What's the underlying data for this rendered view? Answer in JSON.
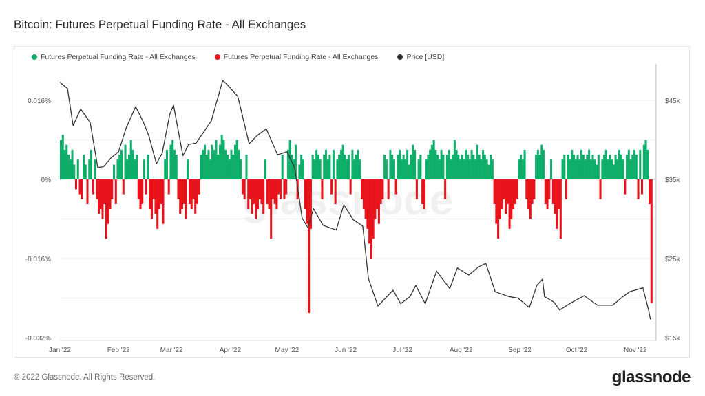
{
  "title": "Bitcoin: Futures Perpetual Funding Rate - All Exchanges",
  "footer": "© 2022 Glassnode. All Rights Reserved.",
  "logo": "glassnode",
  "watermark": "glassnode",
  "chart_data": {
    "type": "bar",
    "title": "Bitcoin: Futures Perpetual Funding Rate - All Exchanges",
    "grid": true,
    "legend_position": "top-left",
    "x_range": [
      "2022-01-01",
      "2022-11-12"
    ],
    "x_ticks": [
      {
        "date": "2022-01-01",
        "label": "Jan '22"
      },
      {
        "date": "2022-02-01",
        "label": "Feb '22"
      },
      {
        "date": "2022-03-01",
        "label": "Mar '22"
      },
      {
        "date": "2022-04-01",
        "label": "Apr '22"
      },
      {
        "date": "2022-05-01",
        "label": "May '22"
      },
      {
        "date": "2022-06-01",
        "label": "Jun '22"
      },
      {
        "date": "2022-07-01",
        "label": "Jul '22"
      },
      {
        "date": "2022-08-01",
        "label": "Aug '22"
      },
      {
        "date": "2022-09-01",
        "label": "Sep '22"
      },
      {
        "date": "2022-10-01",
        "label": "Oct '22"
      },
      {
        "date": "2022-11-01",
        "label": "Nov '22"
      }
    ],
    "left_axis": {
      "unit": "%",
      "ylim": [
        -0.032,
        0.016
      ],
      "ticks": [
        {
          "v": 0.016,
          "label": "0.016%"
        },
        {
          "v": 0,
          "label": "0%"
        },
        {
          "v": -0.016,
          "label": "-0.016%"
        },
        {
          "v": -0.032,
          "label": "-0.032%"
        }
      ]
    },
    "right_axis": {
      "unit": "USD",
      "ylim": [
        15000,
        45000
      ],
      "scale": "linear",
      "ticks": [
        {
          "v": 45000,
          "label": "$45k"
        },
        {
          "v": 35000,
          "label": "$35k"
        },
        {
          "v": 25000,
          "label": "$25k"
        },
        {
          "v": 15000,
          "label": "$15k"
        }
      ]
    },
    "series": [
      {
        "name": "Futures Perpetual Funding Rate - All Exchanges",
        "color": "#0fae6a",
        "part": "positive",
        "axis": "left"
      },
      {
        "name": "Futures Perpetual Funding Rate - All Exchanges",
        "color": "#e8141b",
        "part": "negative",
        "axis": "left"
      },
      {
        "name": "Price [USD]",
        "color": "#333333",
        "type": "line",
        "axis": "right"
      }
    ],
    "funding_rate": {
      "x_start": "2022-01-01",
      "x_step": "1 day",
      "values": [
        0.008,
        0.009,
        0.006,
        0.007,
        0.005,
        0.004,
        0.006,
        0.003,
        -0.002,
        0.004,
        -0.003,
        -0.004,
        0.005,
        0.003,
        -0.005,
        0.004,
        0.006,
        -0.003,
        0.004,
        -0.004,
        -0.007,
        -0.006,
        -0.008,
        -0.005,
        -0.012,
        -0.009,
        -0.006,
        -0.004,
        0.003,
        -0.005,
        0.004,
        0.005,
        0.006,
        -0.003,
        0.007,
        0.004,
        0.005,
        0.008,
        0.006,
        0.004,
        0.005,
        -0.004,
        -0.006,
        -0.005,
        0.004,
        -0.003,
        0.005,
        -0.006,
        -0.008,
        -0.004,
        -0.007,
        -0.01,
        -0.006,
        -0.005,
        -0.009,
        0.004,
        0.006,
        -0.003,
        0.007,
        0.008,
        0.006,
        0.005,
        -0.004,
        -0.007,
        -0.006,
        -0.005,
        -0.008,
        0.004,
        -0.005,
        -0.006,
        -0.004,
        -0.007,
        -0.005,
        -0.003,
        0.005,
        0.006,
        0.007,
        0.005,
        0.006,
        0.004,
        0.007,
        0.006,
        0.008,
        0.005,
        0.007,
        0.009,
        0.008,
        0.006,
        0.005,
        0.004,
        0.006,
        0.005,
        0.007,
        0.008,
        0.006,
        0.004,
        -0.003,
        -0.004,
        0.005,
        -0.006,
        -0.004,
        -0.007,
        -0.005,
        -0.008,
        -0.006,
        -0.004,
        -0.005,
        -0.007,
        0.004,
        -0.005,
        -0.006,
        -0.012,
        -0.004,
        -0.005,
        -0.006,
        -0.003,
        -0.004,
        0.005,
        -0.004,
        -0.003,
        0.006,
        0.008,
        0.005,
        0.004,
        0.007,
        -0.004,
        0.003,
        0.005,
        0.004,
        -0.006,
        -0.009,
        -0.027,
        -0.01,
        0.005,
        0.004,
        0.006,
        0.005,
        0.004,
        -0.004,
        0.005,
        0.006,
        0.004,
        0.005,
        -0.003,
        0.006,
        -0.005,
        0.004,
        0.005,
        0.006,
        0.007,
        0.005,
        0.004,
        0.005,
        -0.003,
        0.006,
        0.004,
        0.005,
        0.006,
        0.004,
        -0.004,
        -0.006,
        -0.008,
        -0.01,
        -0.013,
        -0.016,
        -0.012,
        -0.008,
        -0.006,
        -0.009,
        -0.005,
        -0.004,
        0.005,
        0.004,
        -0.004,
        0.006,
        0.005,
        0.004,
        -0.003,
        0.005,
        0.006,
        0.004,
        0.005,
        0.004,
        0.006,
        0.003,
        0.005,
        0.007,
        0.006,
        -0.004,
        0.004,
        0.005,
        -0.005,
        -0.006,
        0.004,
        0.005,
        0.006,
        0.007,
        0.008,
        0.006,
        0.005,
        0.004,
        0.006,
        0.005,
        -0.004,
        0.005,
        0.006,
        0.004,
        0.005,
        0.008,
        0.006,
        0.005,
        0.004,
        0.005,
        0.004,
        0.006,
        0.005,
        0.004,
        0.006,
        0.005,
        0.004,
        0.007,
        0.005,
        0.004,
        0.006,
        0.005,
        0.004,
        0.003,
        0.005,
        0.004,
        -0.005,
        -0.009,
        -0.012,
        -0.008,
        -0.006,
        -0.004,
        -0.007,
        -0.005,
        -0.01,
        -0.008,
        -0.006,
        -0.005,
        -0.004,
        0.004,
        0.005,
        0.004,
        0.006,
        -0.004,
        -0.006,
        -0.008,
        -0.005,
        -0.004,
        0.005,
        0.006,
        0.005,
        0.007,
        0.006,
        -0.005,
        -0.006,
        -0.004,
        0.004,
        -0.005,
        -0.007,
        -0.01,
        -0.006,
        -0.012,
        0.004,
        0.005,
        -0.004,
        0.005,
        0.004,
        0.006,
        0.005,
        0.004,
        0.005,
        0.004,
        0.006,
        0.005,
        0.004,
        0.005,
        0.006,
        0.004,
        0.005,
        0.004,
        0.003,
        0.005,
        -0.004,
        0.004,
        0.005,
        0.006,
        0.004,
        0.005,
        0.004,
        0.003,
        0.005,
        0.004,
        0.006,
        0.005,
        0.004,
        -0.003,
        0.005,
        0.006,
        0.004,
        0.005,
        0.006,
        0.005,
        -0.004,
        0.006,
        -0.003,
        0.007,
        0.008,
        0.006,
        -0.005,
        -0.025
      ]
    },
    "price": [
      [
        "2022-01-01",
        47300
      ],
      [
        "2022-01-05",
        46500
      ],
      [
        "2022-01-08",
        41800
      ],
      [
        "2022-01-12",
        43900
      ],
      [
        "2022-01-17",
        42200
      ],
      [
        "2022-01-21",
        36500
      ],
      [
        "2022-01-24",
        36600
      ],
      [
        "2022-01-28",
        37700
      ],
      [
        "2022-02-01",
        38500
      ],
      [
        "2022-02-05",
        41500
      ],
      [
        "2022-02-10",
        44200
      ],
      [
        "2022-02-14",
        42300
      ],
      [
        "2022-02-17",
        40500
      ],
      [
        "2022-02-21",
        37000
      ],
      [
        "2022-02-24",
        38300
      ],
      [
        "2022-02-28",
        43200
      ],
      [
        "2022-03-02",
        44400
      ],
      [
        "2022-03-07",
        38000
      ],
      [
        "2022-03-10",
        39400
      ],
      [
        "2022-03-14",
        39600
      ],
      [
        "2022-03-18",
        41000
      ],
      [
        "2022-03-22",
        42400
      ],
      [
        "2022-03-28",
        47500
      ],
      [
        "2022-03-30",
        47100
      ],
      [
        "2022-04-05",
        45500
      ],
      [
        "2022-04-11",
        39500
      ],
      [
        "2022-04-15",
        40500
      ],
      [
        "2022-04-20",
        41400
      ],
      [
        "2022-04-26",
        38100
      ],
      [
        "2022-05-01",
        38500
      ],
      [
        "2022-05-05",
        36500
      ],
      [
        "2022-05-09",
        30100
      ],
      [
        "2022-05-12",
        28900
      ],
      [
        "2022-05-15",
        31300
      ],
      [
        "2022-05-20",
        29200
      ],
      [
        "2022-05-27",
        28600
      ],
      [
        "2022-05-31",
        31800
      ],
      [
        "2022-06-05",
        29900
      ],
      [
        "2022-06-10",
        29100
      ],
      [
        "2022-06-13",
        22500
      ],
      [
        "2022-06-18",
        19000
      ],
      [
        "2022-06-22",
        20000
      ],
      [
        "2022-06-26",
        21000
      ],
      [
        "2022-06-30",
        19300
      ],
      [
        "2022-07-05",
        20200
      ],
      [
        "2022-07-08",
        21600
      ],
      [
        "2022-07-13",
        19300
      ],
      [
        "2022-07-19",
        23400
      ],
      [
        "2022-07-26",
        21200
      ],
      [
        "2022-07-30",
        23800
      ],
      [
        "2022-08-05",
        22900
      ],
      [
        "2022-08-10",
        23900
      ],
      [
        "2022-08-14",
        24400
      ],
      [
        "2022-08-19",
        20800
      ],
      [
        "2022-08-26",
        20200
      ],
      [
        "2022-08-31",
        20000
      ],
      [
        "2022-09-06",
        18800
      ],
      [
        "2022-09-10",
        21600
      ],
      [
        "2022-09-13",
        22400
      ],
      [
        "2022-09-14",
        20200
      ],
      [
        "2022-09-19",
        19500
      ],
      [
        "2022-09-22",
        18500
      ],
      [
        "2022-09-28",
        19400
      ],
      [
        "2022-10-05",
        20300
      ],
      [
        "2022-10-12",
        19100
      ],
      [
        "2022-10-20",
        19100
      ],
      [
        "2022-10-25",
        20100
      ],
      [
        "2022-10-29",
        20800
      ],
      [
        "2022-11-05",
        21300
      ],
      [
        "2022-11-08",
        18500
      ],
      [
        "2022-11-09",
        17300
      ]
    ]
  }
}
